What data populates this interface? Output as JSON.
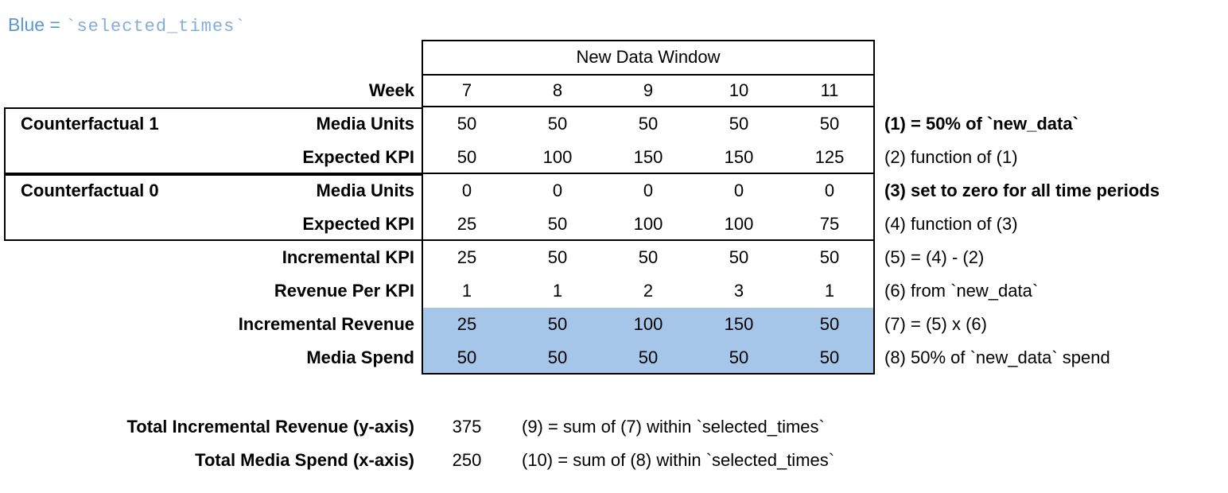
{
  "title": {
    "prefix": "Blue = ",
    "code": "`selected_times`"
  },
  "colors": {
    "highlight": "#a5c6e9",
    "title_blue": "#5b97d5",
    "title_code_blue": "#82aedd",
    "border": "#000000"
  },
  "table": {
    "window_header": "New Data Window",
    "week_label": "Week",
    "weeks": [
      "7",
      "8",
      "9",
      "10",
      "11"
    ],
    "rows": [
      {
        "group": "Counterfactual 1",
        "label": "Media Units",
        "values": [
          "50",
          "50",
          "50",
          "50",
          "50"
        ],
        "note": "(1) = 50% of `new_data`"
      },
      {
        "group": "",
        "label": "Expected KPI",
        "values": [
          "50",
          "100",
          "150",
          "150",
          "125"
        ],
        "note": "(2) function of (1)"
      },
      {
        "group": "Counterfactual 0",
        "label": "Media Units",
        "values": [
          "0",
          "0",
          "0",
          "0",
          "0"
        ],
        "note": "(3) set to zero for all time periods"
      },
      {
        "group": "",
        "label": "Expected KPI",
        "values": [
          "25",
          "50",
          "100",
          "100",
          "75"
        ],
        "note": "(4) function of (3)"
      },
      {
        "group": "",
        "label": "Incremental KPI",
        "values": [
          "25",
          "50",
          "50",
          "50",
          "50"
        ],
        "note": "(5) = (4) - (2)"
      },
      {
        "group": "",
        "label": "Revenue Per KPI",
        "values": [
          "1",
          "1",
          "2",
          "3",
          "1"
        ],
        "note": "(6) from `new_data`"
      },
      {
        "group": "",
        "label": "Incremental Revenue",
        "values": [
          "25",
          "50",
          "100",
          "150",
          "50"
        ],
        "note": "(7) = (5) x (6)"
      },
      {
        "group": "",
        "label": "Media Spend",
        "values": [
          "50",
          "50",
          "50",
          "50",
          "50"
        ],
        "note": "(8) 50% of `new_data` spend"
      }
    ],
    "totals": [
      {
        "label": "Total Incremental Revenue (y-axis)",
        "value": "375",
        "note": "(9) = sum of (7) within `selected_times`"
      },
      {
        "label": "Total Media Spend (x-axis)",
        "value": "250",
        "note": "(10) = sum of (8) within `selected_times`"
      }
    ]
  }
}
